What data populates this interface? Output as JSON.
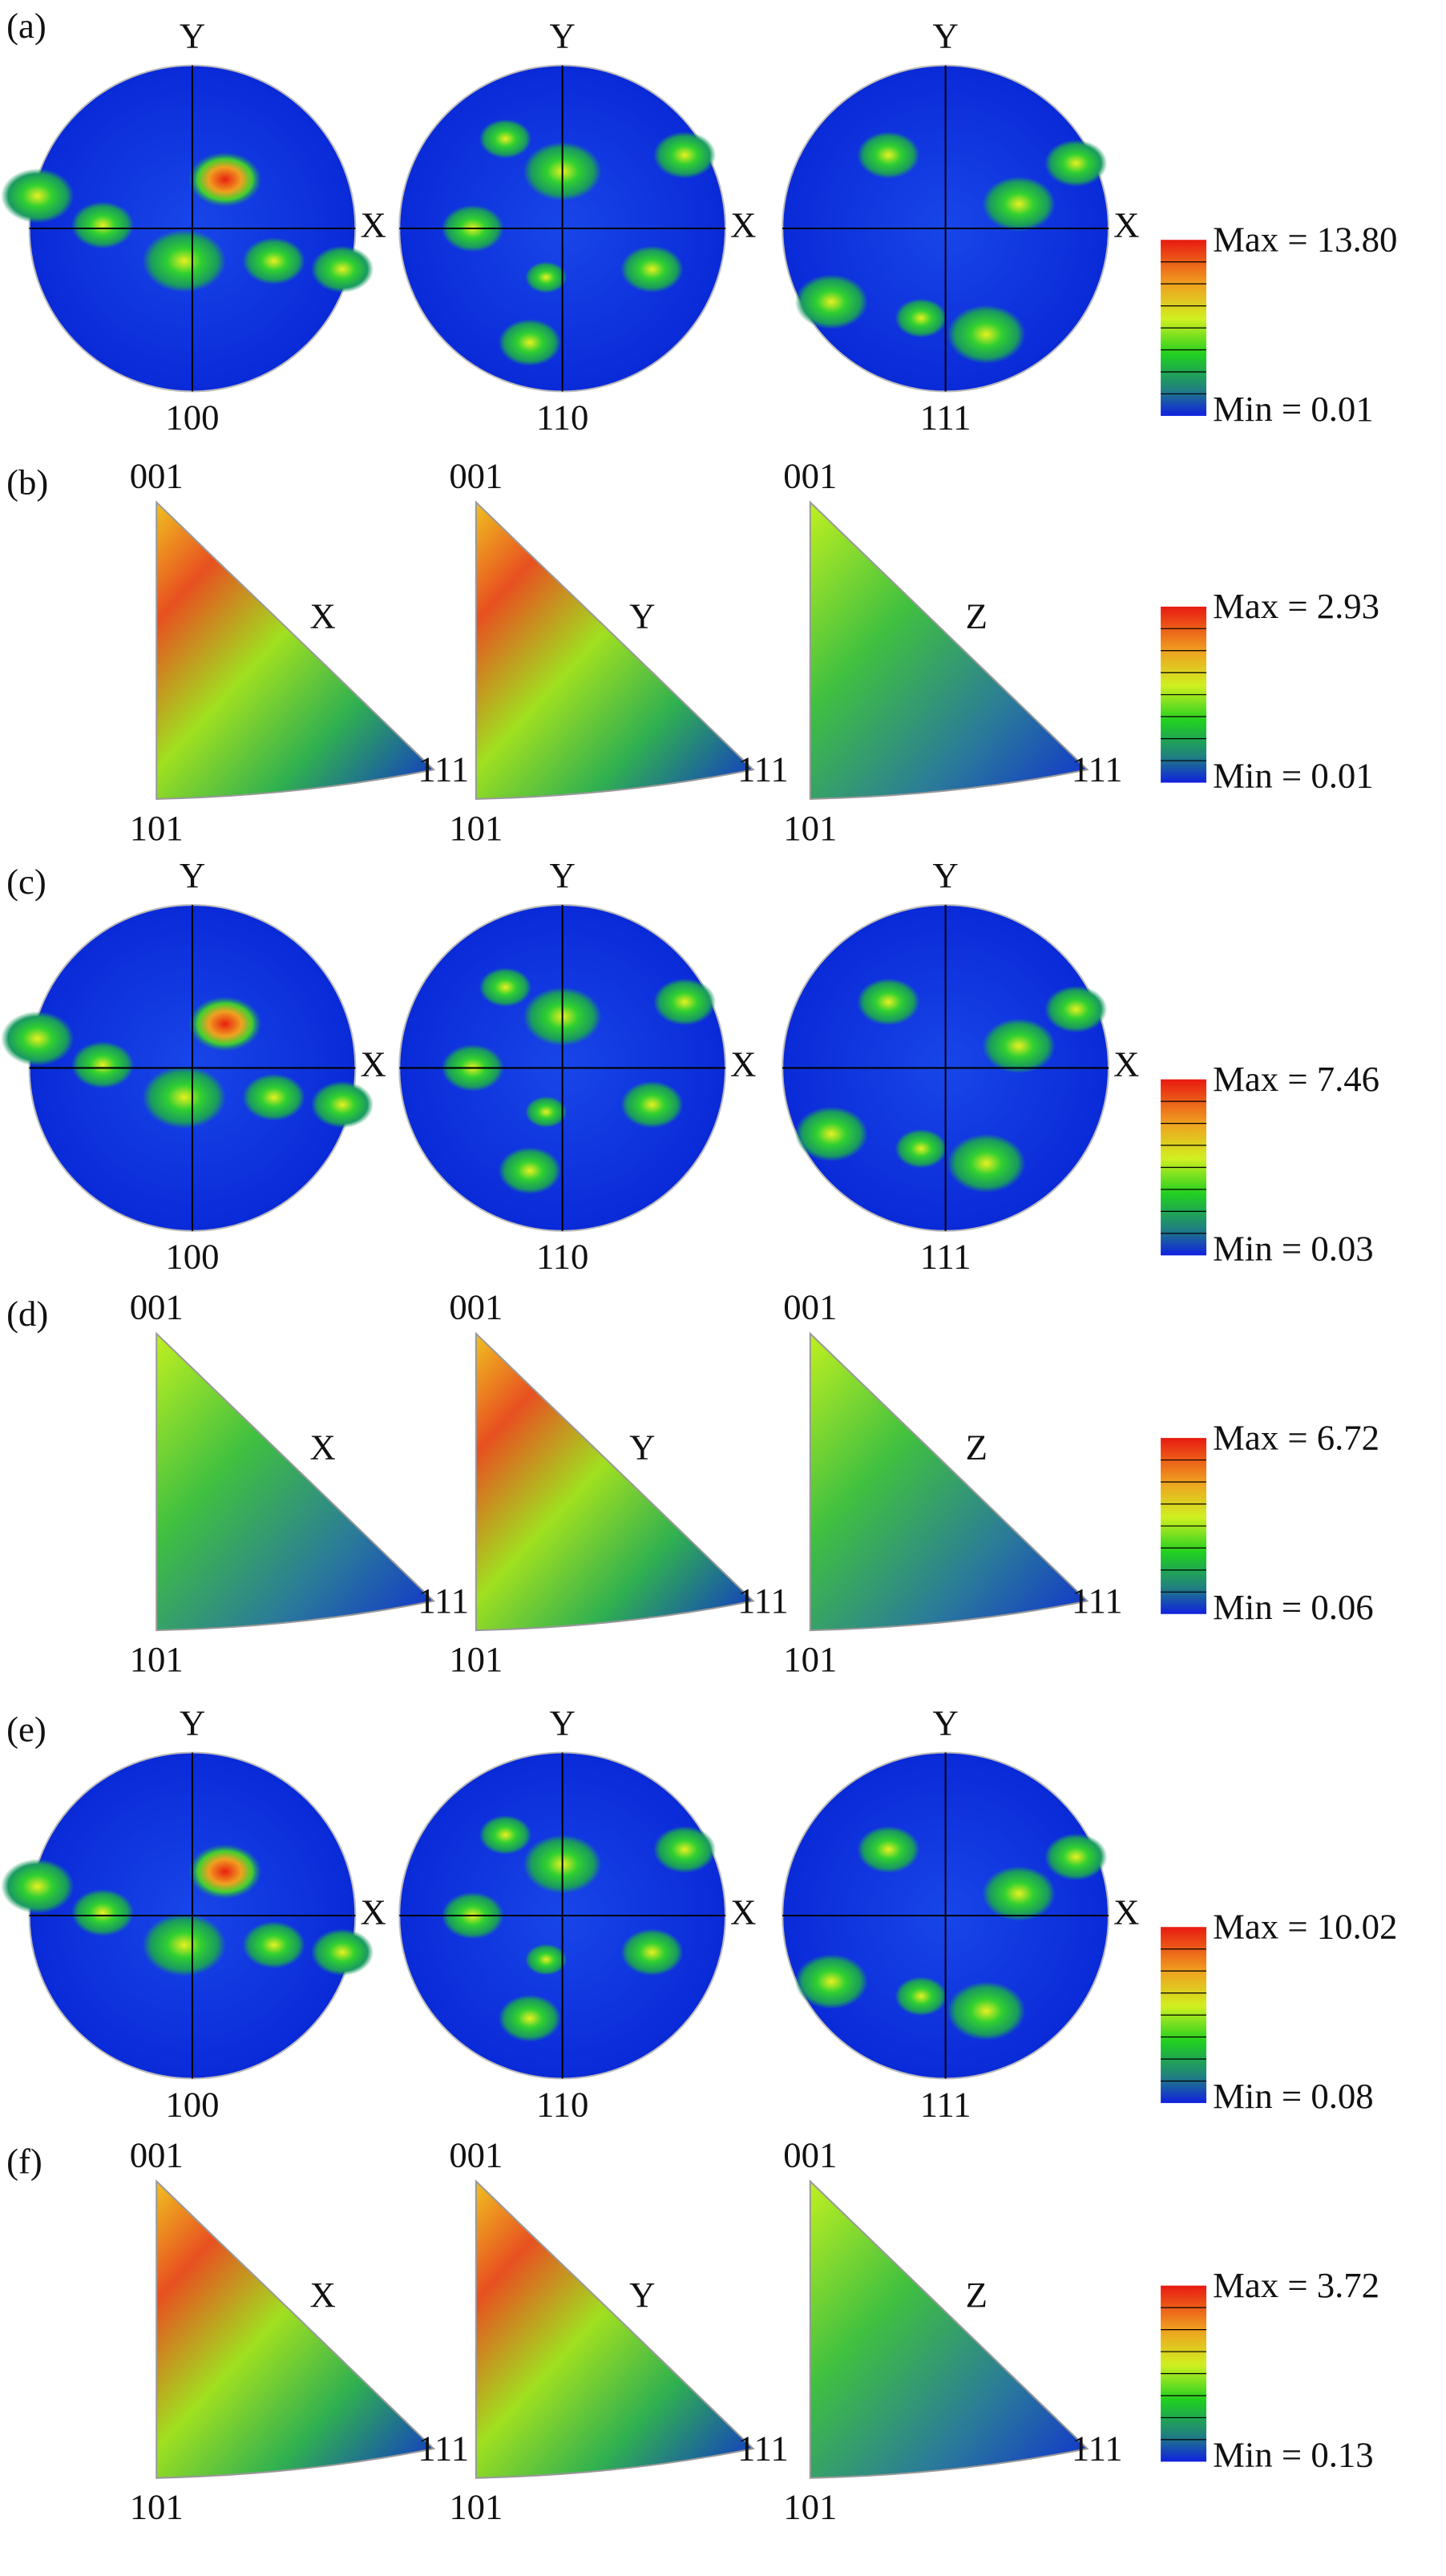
{
  "panels": [
    {
      "label": "(a)",
      "kind": "pole",
      "plots": [
        {
          "pole": "100",
          "top": "Y",
          "right": "X"
        },
        {
          "pole": "110",
          "top": "Y",
          "right": "X"
        },
        {
          "pole": "111",
          "top": "Y",
          "right": "X"
        }
      ],
      "legend": {
        "max": "Max = 13.80",
        "min": "Min = 0.01"
      }
    },
    {
      "label": "(b)",
      "kind": "ipf",
      "plots": [
        {
          "top": "001",
          "left": "101",
          "right": "111",
          "direction": "X"
        },
        {
          "top": "001",
          "left": "101",
          "right": "111",
          "direction": "Y"
        },
        {
          "top": "001",
          "left": "101",
          "right": "111",
          "direction": "Z"
        }
      ],
      "legend": {
        "max": "Max = 2.93",
        "min": "Min = 0.01"
      }
    },
    {
      "label": "(c)",
      "kind": "pole",
      "plots": [
        {
          "pole": "100",
          "top": "Y",
          "right": "X"
        },
        {
          "pole": "110",
          "top": "Y",
          "right": "X"
        },
        {
          "pole": "111",
          "top": "Y",
          "right": "X"
        }
      ],
      "legend": {
        "max": "Max = 7.46",
        "min": "Min = 0.03"
      }
    },
    {
      "label": "(d)",
      "kind": "ipf",
      "plots": [
        {
          "top": "001",
          "left": "101",
          "right": "111",
          "direction": "X"
        },
        {
          "top": "001",
          "left": "101",
          "right": "111",
          "direction": "Y"
        },
        {
          "top": "001",
          "left": "101",
          "right": "111",
          "direction": "Z"
        }
      ],
      "legend": {
        "max": "Max = 6.72",
        "min": "Min = 0.06"
      }
    },
    {
      "label": "(e)",
      "kind": "pole",
      "plots": [
        {
          "pole": "100",
          "top": "Y",
          "right": "X"
        },
        {
          "pole": "110",
          "top": "Y",
          "right": "X"
        },
        {
          "pole": "111",
          "top": "Y",
          "right": "X"
        }
      ],
      "legend": {
        "max": "Max = 10.02",
        "min": "Min = 0.08"
      }
    },
    {
      "label": "(f)",
      "kind": "ipf",
      "plots": [
        {
          "top": "001",
          "left": "101",
          "right": "111",
          "direction": "X"
        },
        {
          "top": "001",
          "left": "101",
          "right": "111",
          "direction": "Y"
        },
        {
          "top": "001",
          "left": "101",
          "right": "111",
          "direction": "Z"
        }
      ],
      "legend": {
        "max": "Max = 3.72",
        "min": "Min = 0.13"
      }
    }
  ]
}
